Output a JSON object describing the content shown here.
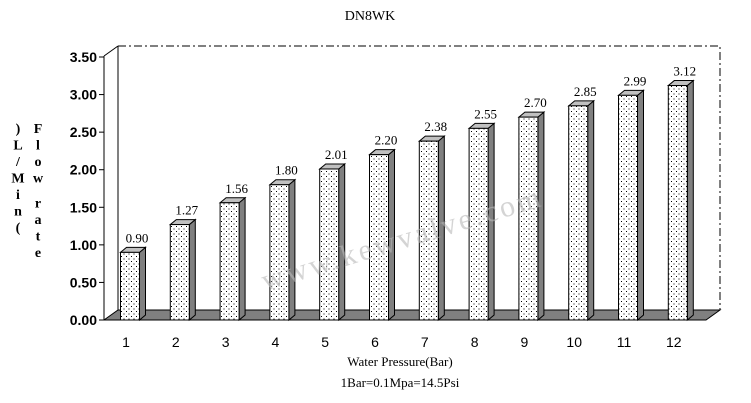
{
  "chart_data": {
    "type": "bar",
    "title": "DN8WK",
    "xlabel": "Water Pressure(Bar)",
    "subtitle": "1Bar=0.1Mpa=14.5Psi",
    "ylabel_top": ")L/Min(",
    "ylabel_main": "Flow rate",
    "categories": [
      "1",
      "2",
      "3",
      "4",
      "5",
      "6",
      "7",
      "8",
      "9",
      "10",
      "11",
      "12"
    ],
    "values": [
      0.9,
      1.27,
      1.56,
      1.8,
      2.01,
      2.2,
      2.38,
      2.55,
      2.7,
      2.85,
      2.99,
      3.12
    ],
    "value_labels": [
      "0.90",
      "1.27",
      "1.56",
      "1.80",
      "2.01",
      "2.20",
      "2.38",
      "2.55",
      "2.70",
      "2.85",
      "2.99",
      "3.12"
    ],
    "yticks": [
      "0.00",
      "0.50",
      "1.00",
      "1.50",
      "2.00",
      "2.50",
      "3.00",
      "3.50"
    ],
    "ylim": [
      0,
      3.5
    ],
    "grid": false,
    "legend": "none",
    "watermark": "www.kewvalve.com",
    "colors": {
      "bar_face": "#ffffff",
      "bar_side": "#808080",
      "floor": "#808080",
      "text": "#000000"
    }
  }
}
